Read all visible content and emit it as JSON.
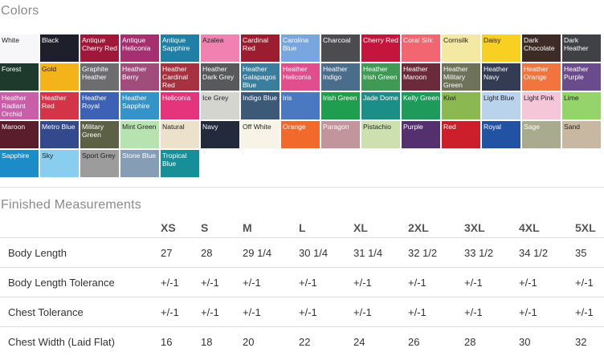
{
  "colors_title": "Colors",
  "measurements_title": "Finished Measurements",
  "swatches": [
    {
      "name": "White",
      "bg": "#f7f7f9",
      "fg": "#222222"
    },
    {
      "name": "Black",
      "bg": "#1d1f2b",
      "fg": "#ffffff"
    },
    {
      "name": "Antique Cherry Red",
      "bg": "#a1173a",
      "fg": "#ffffff"
    },
    {
      "name": "Antique Heliconia",
      "bg": "#a5306f",
      "fg": "#ffffff"
    },
    {
      "name": "Antique Sapphire",
      "bg": "#1f7fa5",
      "fg": "#ffffff"
    },
    {
      "name": "Azalea",
      "bg": "#f081b0",
      "fg": "#222222"
    },
    {
      "name": "Cardinal Red",
      "bg": "#9c1d2f",
      "fg": "#ffffff"
    },
    {
      "name": "Carolina Blue",
      "bg": "#79a6df",
      "fg": "#ffffff"
    },
    {
      "name": "Charcoal",
      "bg": "#4b4b50",
      "fg": "#ffffff"
    },
    {
      "name": "Cherry Red",
      "bg": "#c4163d",
      "fg": "#ffffff"
    },
    {
      "name": "Coral Silk",
      "bg": "#f26671",
      "fg": "#ffffff"
    },
    {
      "name": "Cornsilk",
      "bg": "#f3e9a3",
      "fg": "#222222"
    },
    {
      "name": "Daisy",
      "bg": "#f7d021",
      "fg": "#222222"
    },
    {
      "name": "Dark Chocolate",
      "bg": "#3d2b26",
      "fg": "#ffffff"
    },
    {
      "name": "Dark Heather",
      "bg": "#3f4147",
      "fg": "#ffffff"
    },
    {
      "name": "Forest",
      "bg": "#1d3a2d",
      "fg": "#ffffff"
    },
    {
      "name": "Gold",
      "bg": "#f5b31a",
      "fg": "#222222"
    },
    {
      "name": "Graphite Heather",
      "bg": "#6d6c6e",
      "fg": "#ffffff"
    },
    {
      "name": "Heather Berry",
      "bg": "#a14d7b",
      "fg": "#ffffff"
    },
    {
      "name": "Heather Cardinal Red",
      "bg": "#a8313f",
      "fg": "#ffffff"
    },
    {
      "name": "Heather Dark Grey",
      "bg": "#58595b",
      "fg": "#ffffff"
    },
    {
      "name": "Heather Galapagos Blue",
      "bg": "#3a7d9c",
      "fg": "#ffffff"
    },
    {
      "name": "Heather Heliconia",
      "bg": "#e14d8d",
      "fg": "#ffffff"
    },
    {
      "name": "Heather Indigo",
      "bg": "#4a6d8b",
      "fg": "#ffffff"
    },
    {
      "name": "Heather Irish Green",
      "bg": "#3e9a55",
      "fg": "#ffffff"
    },
    {
      "name": "Heather Maroon",
      "bg": "#6b2b3b",
      "fg": "#ffffff"
    },
    {
      "name": "Heather Military Green",
      "bg": "#6d7259",
      "fg": "#ffffff"
    },
    {
      "name": "Heather Navy",
      "bg": "#333c52",
      "fg": "#ffffff"
    },
    {
      "name": "Heather Orange",
      "bg": "#f27540",
      "fg": "#ffffff"
    },
    {
      "name": "Heather Purple",
      "bg": "#6a4c8c",
      "fg": "#ffffff"
    },
    {
      "name": "Heather Radiant Orchid",
      "bg": "#c95fa8",
      "fg": "#ffffff"
    },
    {
      "name": "Heather Red",
      "bg": "#d33447",
      "fg": "#ffffff"
    },
    {
      "name": "Heather Royal",
      "bg": "#3d62b5",
      "fg": "#ffffff"
    },
    {
      "name": "Heather Sapphire",
      "bg": "#3493c9",
      "fg": "#ffffff"
    },
    {
      "name": "Heliconia",
      "bg": "#e5337c",
      "fg": "#ffffff"
    },
    {
      "name": "Ice Grey",
      "bg": "#d5d5d0",
      "fg": "#222222"
    },
    {
      "name": "Indigo Blue",
      "bg": "#3c5a78",
      "fg": "#ffffff"
    },
    {
      "name": "Iris",
      "bg": "#4a78c1",
      "fg": "#ffffff"
    },
    {
      "name": "Irish Green",
      "bg": "#1e9e4e",
      "fg": "#ffffff"
    },
    {
      "name": "Jade Dome",
      "bg": "#1b8e87",
      "fg": "#ffffff"
    },
    {
      "name": "Kelly Green",
      "bg": "#1e9a5b",
      "fg": "#ffffff"
    },
    {
      "name": "Kiwi",
      "bg": "#8bb851",
      "fg": "#222222"
    },
    {
      "name": "Light Blue",
      "bg": "#bad3ec",
      "fg": "#222222"
    },
    {
      "name": "Light Pink",
      "bg": "#f4c6d7",
      "fg": "#222222"
    },
    {
      "name": "Lime",
      "bg": "#94d46a",
      "fg": "#222222"
    },
    {
      "name": "Maroon",
      "bg": "#5a1d2b",
      "fg": "#ffffff"
    },
    {
      "name": "Metro Blue",
      "bg": "#33488d",
      "fg": "#ffffff"
    },
    {
      "name": "Military Green",
      "bg": "#5c6145",
      "fg": "#ffffff"
    },
    {
      "name": "Mint Green",
      "bg": "#b7e3b1",
      "fg": "#222222"
    },
    {
      "name": "Natural",
      "bg": "#ece2cc",
      "fg": "#222222"
    },
    {
      "name": "Navy",
      "bg": "#232a3b",
      "fg": "#ffffff"
    },
    {
      "name": "Off White",
      "bg": "#f7f3e6",
      "fg": "#222222"
    },
    {
      "name": "Orange",
      "bg": "#f26a2b",
      "fg": "#ffffff"
    },
    {
      "name": "Paragon",
      "bg": "#c2949c",
      "fg": "#ffffff"
    },
    {
      "name": "Pistachio",
      "bg": "#cde1b0",
      "fg": "#222222"
    },
    {
      "name": "Purple",
      "bg": "#55306f",
      "fg": "#ffffff"
    },
    {
      "name": "Red",
      "bg": "#cc1f2c",
      "fg": "#ffffff"
    },
    {
      "name": "Royal",
      "bg": "#2152a3",
      "fg": "#ffffff"
    },
    {
      "name": "Sage",
      "bg": "#a9ab8e",
      "fg": "#ffffff"
    },
    {
      "name": "Sand",
      "bg": "#c8b8a1",
      "fg": "#222222"
    },
    {
      "name": "Sapphire",
      "bg": "#1b8cc8",
      "fg": "#ffffff"
    },
    {
      "name": "Sky",
      "bg": "#89cdef",
      "fg": "#222222"
    },
    {
      "name": "Sport Grey",
      "bg": "#9c9c9c",
      "fg": "#222222"
    },
    {
      "name": "Stone Blue",
      "bg": "#859db5",
      "fg": "#ffffff"
    },
    {
      "name": "Tropical Blue",
      "bg": "#168f99",
      "fg": "#ffffff"
    }
  ],
  "table": {
    "sizes": [
      "XS",
      "S",
      "M",
      "L",
      "XL",
      "2XL",
      "3XL",
      "4XL",
      "5XL"
    ],
    "rows": [
      {
        "label": "Body Length",
        "values": [
          "27",
          "28",
          "29 1/4",
          "30 1/4",
          "31 1/4",
          "32 1/2",
          "33 1/2",
          "34 1/2",
          "35"
        ]
      },
      {
        "label": "Body Length Tolerance",
        "values": [
          "+/-1",
          "+/-1",
          "+/-1",
          "+/-1",
          "+/-1",
          "+/-1",
          "+/-1",
          "+/-1",
          "+/-1"
        ]
      },
      {
        "label": "Chest Tolerance",
        "values": [
          "+/-1",
          "+/-1",
          "+/-1",
          "+/-1",
          "+/-1",
          "+/-1",
          "+/-1",
          "+/-1",
          "+/-1"
        ]
      },
      {
        "label": "Chest Width (Laid Flat)",
        "values": [
          "16",
          "18",
          "20",
          "22",
          "24",
          "26",
          "28",
          "30",
          "32"
        ]
      }
    ]
  }
}
